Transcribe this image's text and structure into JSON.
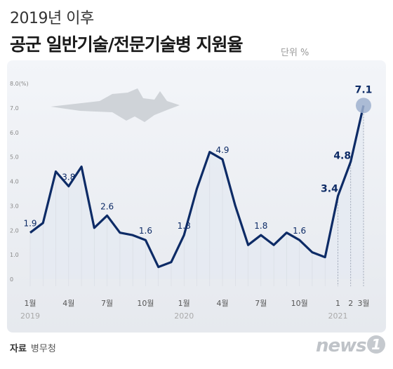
{
  "header": {
    "title_line1": "2019년 이후",
    "title_line2": "공군 일반기술/전문기술병 지원율",
    "unit": "단위 %"
  },
  "source": {
    "label": "자료",
    "value": "병무청"
  },
  "logo": {
    "text": "news",
    "mark": "1"
  },
  "colors": {
    "line": "#0d2b66",
    "area": "#e4e9f2",
    "highlight": "#9fb0cf",
    "axis_text": "#555"
  },
  "chart_data": {
    "type": "area",
    "title": "2019년 이후 공군 일반기술/전문기술병 지원율",
    "ylim": [
      0,
      8
    ],
    "y_ticks": [
      "0",
      "1.0",
      "2.0",
      "3.0",
      "4.0",
      "5.0",
      "6.0",
      "7.0",
      "8.0"
    ],
    "y_unit": "(%)",
    "x": [
      "2019-01",
      "2019-02",
      "2019-03",
      "2019-04",
      "2019-05",
      "2019-06",
      "2019-07",
      "2019-08",
      "2019-09",
      "2019-10",
      "2019-11",
      "2019-12",
      "2020-01",
      "2020-02",
      "2020-03",
      "2020-04",
      "2020-05",
      "2020-06",
      "2020-07",
      "2020-08",
      "2020-09",
      "2020-10",
      "2020-11",
      "2020-12",
      "2021-01",
      "2021-02",
      "2021-03"
    ],
    "values": [
      1.9,
      2.3,
      4.4,
      3.8,
      4.6,
      2.1,
      2.6,
      1.9,
      1.8,
      1.6,
      0.5,
      0.7,
      1.8,
      3.7,
      5.2,
      4.9,
      3.0,
      1.4,
      1.8,
      1.4,
      1.9,
      1.6,
      1.1,
      0.9,
      3.4,
      4.8,
      7.1
    ],
    "x_tick_labels": [
      {
        "i": 0,
        "label": "1월"
      },
      {
        "i": 3,
        "label": "4월"
      },
      {
        "i": 6,
        "label": "7월"
      },
      {
        "i": 9,
        "label": "10월"
      },
      {
        "i": 12,
        "label": "1월"
      },
      {
        "i": 15,
        "label": "4월"
      },
      {
        "i": 18,
        "label": "7월"
      },
      {
        "i": 21,
        "label": "10월"
      },
      {
        "i": 24,
        "label": "1"
      },
      {
        "i": 25,
        "label": "2"
      },
      {
        "i": 26,
        "label": "3월"
      }
    ],
    "year_labels": [
      {
        "i": 0,
        "label": "2019"
      },
      {
        "i": 12,
        "label": "2020"
      },
      {
        "i": 24,
        "label": "2021"
      }
    ],
    "data_labels": [
      {
        "i": 0,
        "label": "1.9"
      },
      {
        "i": 3,
        "label": "3.8"
      },
      {
        "i": 6,
        "label": "2.6"
      },
      {
        "i": 9,
        "label": "1.6"
      },
      {
        "i": 12,
        "label": "1.8"
      },
      {
        "i": 15,
        "label": "4.9"
      },
      {
        "i": 18,
        "label": "1.8"
      },
      {
        "i": 21,
        "label": "1.6"
      },
      {
        "i": 24,
        "label": "3.4"
      },
      {
        "i": 25,
        "label": "4.8"
      },
      {
        "i": 26,
        "label": "7.1"
      }
    ],
    "highlight_index": 26,
    "grid": false
  }
}
